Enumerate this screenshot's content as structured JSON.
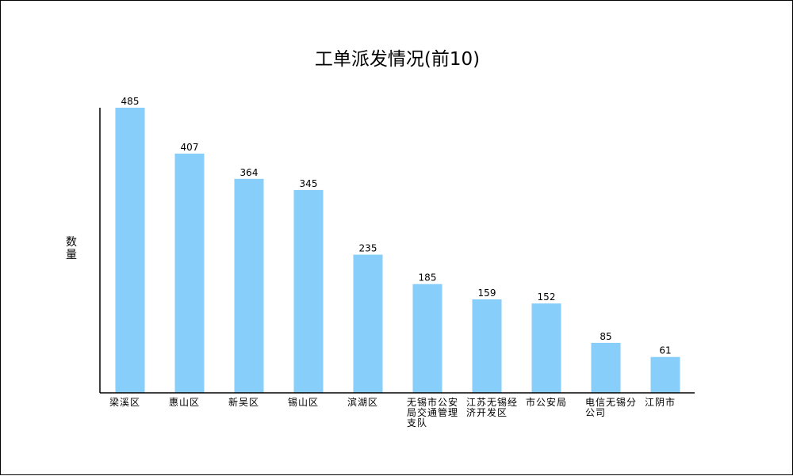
{
  "chart_data": {
    "type": "bar",
    "title": "工单派发情况(前10)",
    "xlabel": "",
    "ylabel": "数量",
    "categories": [
      "梁溪区",
      "惠山区",
      "新吴区",
      "锡山区",
      "滨湖区",
      "无锡市公安局交通管理支队",
      "江苏无锡经济开发区",
      "市公安局",
      "电信无锡分公司",
      "江阴市"
    ],
    "values": [
      485,
      407,
      364,
      345,
      235,
      185,
      159,
      152,
      85,
      61
    ],
    "ylim": [
      0,
      485
    ],
    "grid": false,
    "legend": "none",
    "bar_color": "#87cefa",
    "axis_color": "#000000"
  }
}
